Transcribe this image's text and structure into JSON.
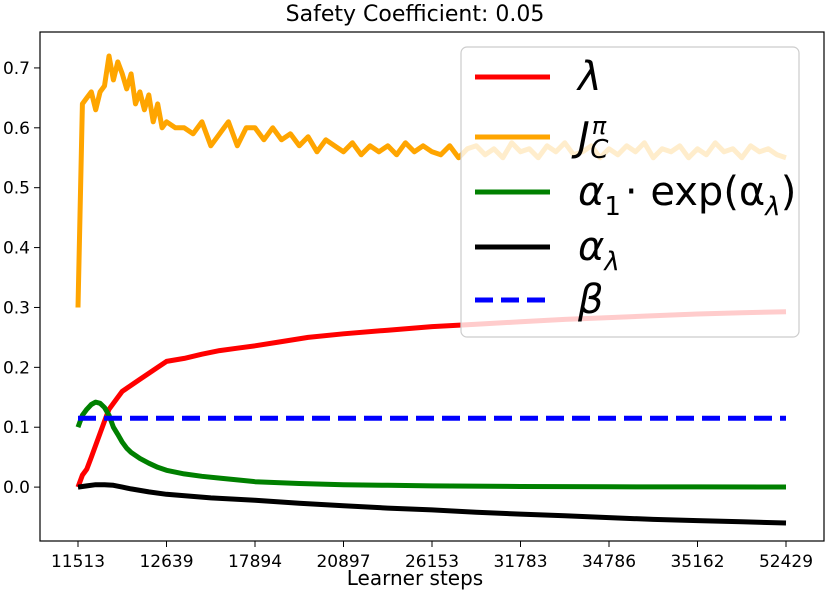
{
  "chart_data": {
    "type": "line",
    "title": "Safety Coefficient: 0.05",
    "xlabel": "Learner steps",
    "ylabel": "",
    "x_tick_labels": [
      "11513",
      "12639",
      "17894",
      "20897",
      "26153",
      "31783",
      "34786",
      "35162",
      "52429"
    ],
    "ylim": [
      -0.09,
      0.76
    ],
    "y_ticks": [
      0.0,
      0.1,
      0.2,
      0.3,
      0.4,
      0.5,
      0.6,
      0.7
    ],
    "y_tick_labels": [
      "0.0",
      "0.1",
      "0.2",
      "0.3",
      "0.4",
      "0.5",
      "0.6",
      "0.7"
    ],
    "grid": false,
    "legend_position": "top-right",
    "x_note": "x axis is categorical checkpoint index (0 to 8) labeled by learner-step tick labels",
    "series": [
      {
        "name": "λ",
        "legend_label": "λ",
        "color": "#ff0000",
        "dash": false,
        "x": [
          0,
          0.05,
          0.1,
          0.15,
          0.2,
          0.25,
          0.3,
          0.35,
          0.4,
          0.45,
          0.5,
          0.55,
          0.6,
          0.7,
          0.8,
          0.9,
          1.0,
          1.2,
          1.4,
          1.6,
          1.8,
          2.0,
          2.3,
          2.6,
          3.0,
          3.5,
          4.0,
          4.5,
          5.0,
          5.5,
          6.0,
          6.5,
          7.0,
          7.5,
          8.0
        ],
        "values": [
          0.0,
          0.02,
          0.03,
          0.05,
          0.07,
          0.09,
          0.11,
          0.13,
          0.14,
          0.15,
          0.16,
          0.165,
          0.17,
          0.18,
          0.19,
          0.2,
          0.21,
          0.215,
          0.222,
          0.228,
          0.232,
          0.236,
          0.243,
          0.25,
          0.256,
          0.262,
          0.268,
          0.272,
          0.276,
          0.28,
          0.283,
          0.286,
          0.289,
          0.291,
          0.293
        ]
      },
      {
        "name": "J_C^π",
        "legend_label": "J",
        "legend_sup": "π",
        "legend_sub": "C",
        "color": "#ffa500",
        "dash": false,
        "x": [
          0,
          0.05,
          0.1,
          0.15,
          0.2,
          0.25,
          0.3,
          0.35,
          0.4,
          0.45,
          0.5,
          0.55,
          0.6,
          0.65,
          0.7,
          0.75,
          0.8,
          0.85,
          0.9,
          0.95,
          1.0,
          1.1,
          1.2,
          1.3,
          1.4,
          1.5,
          1.6,
          1.7,
          1.8,
          1.9,
          2.0,
          2.1,
          2.2,
          2.3,
          2.4,
          2.5,
          2.6,
          2.7,
          2.8,
          2.9,
          3.0,
          3.1,
          3.2,
          3.3,
          3.4,
          3.5,
          3.6,
          3.7,
          3.8,
          3.9,
          4.0,
          4.1,
          4.2,
          4.3,
          4.4,
          4.5,
          4.6,
          4.7,
          4.8,
          4.9,
          5.0,
          5.1,
          5.2,
          5.3,
          5.4,
          5.5,
          5.6,
          5.7,
          5.8,
          5.9,
          6.0,
          6.1,
          6.2,
          6.3,
          6.4,
          6.5,
          6.6,
          6.7,
          6.8,
          6.9,
          7.0,
          7.1,
          7.2,
          7.3,
          7.4,
          7.5,
          7.6,
          7.7,
          7.8,
          7.9,
          8.0
        ],
        "values": [
          0.3,
          0.64,
          0.65,
          0.66,
          0.63,
          0.66,
          0.67,
          0.72,
          0.68,
          0.71,
          0.69,
          0.665,
          0.69,
          0.64,
          0.66,
          0.63,
          0.655,
          0.61,
          0.64,
          0.6,
          0.61,
          0.6,
          0.6,
          0.59,
          0.61,
          0.57,
          0.59,
          0.61,
          0.57,
          0.6,
          0.6,
          0.58,
          0.6,
          0.58,
          0.59,
          0.57,
          0.585,
          0.56,
          0.58,
          0.57,
          0.56,
          0.575,
          0.555,
          0.57,
          0.56,
          0.57,
          0.555,
          0.575,
          0.56,
          0.57,
          0.56,
          0.555,
          0.57,
          0.55,
          0.565,
          0.57,
          0.555,
          0.565,
          0.55,
          0.575,
          0.56,
          0.565,
          0.55,
          0.57,
          0.56,
          0.575,
          0.555,
          0.56,
          0.57,
          0.55,
          0.565,
          0.555,
          0.57,
          0.56,
          0.575,
          0.55,
          0.565,
          0.56,
          0.57,
          0.55,
          0.565,
          0.555,
          0.575,
          0.56,
          0.565,
          0.55,
          0.57,
          0.56,
          0.565,
          0.555,
          0.55
        ]
      },
      {
        "name": "α1·exp(αλ)",
        "legend_label": "α",
        "legend_rest": "· exp(α",
        "legend_sub1": "1",
        "legend_sub2": "λ",
        "color": "#008000",
        "dash": false,
        "x": [
          0,
          0.05,
          0.1,
          0.15,
          0.2,
          0.25,
          0.3,
          0.35,
          0.4,
          0.45,
          0.5,
          0.55,
          0.6,
          0.7,
          0.8,
          0.9,
          1.0,
          1.2,
          1.4,
          1.6,
          1.8,
          2.0,
          2.5,
          3.0,
          3.5,
          4.0,
          5.0,
          6.0,
          7.0,
          8.0
        ],
        "values": [
          0.1,
          0.12,
          0.13,
          0.138,
          0.142,
          0.14,
          0.133,
          0.12,
          0.1,
          0.088,
          0.075,
          0.065,
          0.058,
          0.048,
          0.04,
          0.033,
          0.028,
          0.022,
          0.018,
          0.015,
          0.012,
          0.009,
          0.006,
          0.004,
          0.003,
          0.002,
          0.001,
          0.0005,
          0.0003,
          0.0002
        ]
      },
      {
        "name": "αλ",
        "legend_label": "α",
        "legend_sub": "λ",
        "color": "#000000",
        "dash": false,
        "x": [
          0,
          0.1,
          0.2,
          0.3,
          0.4,
          0.5,
          0.6,
          0.8,
          1.0,
          1.5,
          2.0,
          2.5,
          3.0,
          3.5,
          4.0,
          4.5,
          5.0,
          5.5,
          6.0,
          6.5,
          7.0,
          7.5,
          8.0
        ],
        "values": [
          0.0,
          0.002,
          0.004,
          0.004,
          0.003,
          0.0,
          -0.003,
          -0.008,
          -0.012,
          -0.018,
          -0.022,
          -0.027,
          -0.031,
          -0.035,
          -0.038,
          -0.042,
          -0.045,
          -0.048,
          -0.051,
          -0.054,
          -0.056,
          -0.058,
          -0.06
        ]
      },
      {
        "name": "β",
        "legend_label": "β",
        "color": "#0000ff",
        "dash": true,
        "x": [
          0,
          8
        ],
        "values": [
          0.115,
          0.115
        ]
      }
    ]
  }
}
